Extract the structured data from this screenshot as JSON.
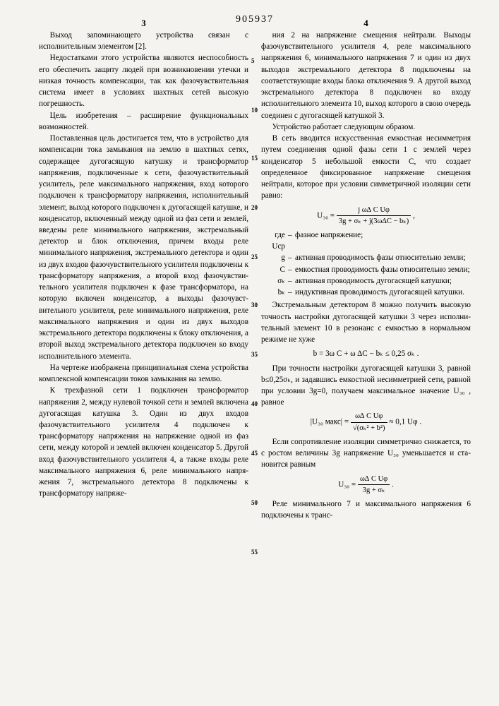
{
  "doc_number": "905937",
  "page_left": "3",
  "page_right": "4",
  "line_marks": [
    "5",
    "10",
    "15",
    "20",
    "25",
    "30",
    "35",
    "40",
    "45",
    "50",
    "55"
  ],
  "left_paras": [
    "Выход запоминающего устройства свя­зан с исполнительным элементом [2].",
    "Недостатками этого устройства яв­ляются неспособность его обеспечить защиту людей при возникновении утеч­ки и низкая точность компенсации, так как фазочувствительная система имеет в условиях шахтных сетей высо­кую погрешность.",
    "Цель изобретения – расширение функциональных возможностей.",
    "Поставленная цель достигается тем, что в устройство для компенсации то­ка замыкания на землю в шахтных се­тях, содержащее дугогасящую катушку и трансформатор напряжения, подклю­ченные к сети, фазочувствительный усилитель, реле максимального напря­жения, вход которого подключен к трансформатору напряжения, исполни­тельный элемент, выход которого под­ключен к дугогасящей катушке, и кон­денсатор, включенный между одной из фаз сети и землей, введены реле ми­нимального напряжения, экстремальный детектор и блок отключения, причем входы реле минимального напряжения, экстремального детектора и один из двух входов фазочувствительного уси­лителя подключены к трансформатору напряжения, а второй вход фазочувстви­тельного усилителя подключен к фа­зе трансформатора, на которую вклю­чен конденсатор, а выходы фазочувст­вительного усилителя, реле минималь­ного напряжения, реле максимального напряжения и один из двух выходов экстремального детектора подключены к блоку отключения, а второй выход экстремального детектора подключен ко входу исполнительного элемента.",
    "На чертеже изображена принципиаль­ная схема устройства комплексной компенсации токов замыкания на зем­лю.",
    "К трехфазной сети 1 подключен трансформатор напряжения 2, между нулевой точкой сети и землей включе­на дугогасящая катушка 3. Один из двух входов фазочувствительного уси­лителя 4 подключен к трансформатору напряжения на напряжение одной из фаз сети, между которой и землей включен конденсатор 5. Другой вход фазочувствительного усилителя 4, а также входы реле максимального на­пряжения 6, реле минимального напря­жения 7, экстремального детектора 8 подключены к трансформатору напряже-"
  ],
  "right_paras_a": [
    "ния 2 на напряжение смещения нейтра­ли. Выходы фазочувствительного усили­теля 4, реле максимального напряже­ния 6, минимального напряжения 7 и один из двух выходов экстремального детектора 8 подключены на соответст­вующие входы блока отключения 9. А другой выход экстремального детекто­ра 8 подключен ко входу исполнитель­ного элемента 10, выход которого в свою очередь соединен с дугогасящей катушкой 3.",
    "Устройство работает следующим об­разом.",
    "В сеть вводится искусственная ем­костная несимметрия путем соединения одной фазы сети 1 с землей через конденсатор 5 небольшой емкости C, что создает определенное фиксирован­ное напряжение смещения нейтрали, ко­торое при условии симметричной изоля­ции сети равно:"
  ],
  "formula1": {
    "lhs": "U₃₀ =",
    "num": "j ω∆ C Uφ",
    "den": "3g + σₖ + j(3ω∆C − bₖ)"
  },
  "where_intro": "где",
  "where": [
    {
      "sym": "Uср",
      "txt": "фазное напряжение;"
    },
    {
      "sym": "g",
      "txt": "активная проводимость фазы относительно земли;"
    },
    {
      "sym": "C",
      "txt": "емкостная проводимость фазы относительно земли;"
    },
    {
      "sym": "σₖ",
      "txt": "активная проводимость дуго­гасящей катушки;"
    },
    {
      "sym": "bₖ",
      "txt": "индуктивная проводимость дугогасящей катушки."
    }
  ],
  "right_paras_b": [
    "Экстремальным детектором 8 можно получить высокую точность настройки дугогасящей катушки 3 через исполни­тельный элемент 10 в резонанс с ем­костью в нормальном режиме не хуже"
  ],
  "formula_inline": "b = 3ω C + ω ∆C − bₖ ≤ 0,25 σₖ .",
  "right_paras_c": [
    "При точности настройки дугогася­щей катушки 3, равной b≤0,25σₖ, и задавшись емкостной несимметрией се­ти, равной при условии 3g=0, получаем максимальное значение U₃₀ , равное"
  ],
  "formula2": {
    "lhs": "|U₃₀ макс| =",
    "num": "ω∆ C Uφ",
    "den": "√(σₖ² + b²)",
    "approx": "≈ 0,1 Uφ ."
  },
  "right_paras_d": [
    "Если сопротивление изоляции сим­метрично снижается, то с ростом вели­чины 3g напряжение U₃₀ уменьшается и ста­новится равным"
  ],
  "formula3": {
    "lhs": "U₃₀ =",
    "num": "ω∆ C Uφ",
    "den": "3g + σₖ"
  },
  "right_paras_e": [
    "Реле минимального 7 и максимально­го напряжения 6 подключены к транс-"
  ]
}
